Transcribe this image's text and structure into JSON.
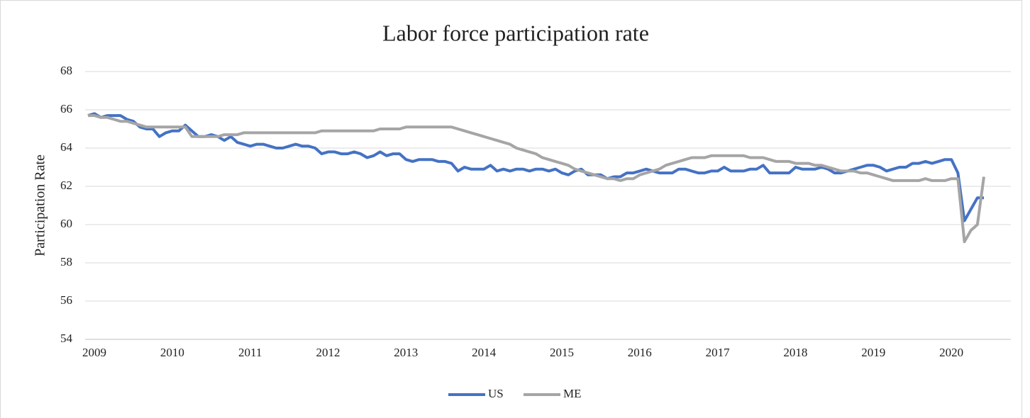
{
  "chart_data": {
    "type": "line",
    "title": "Labor force participation rate",
    "y_label": "Participation Rate",
    "categories": [
      "2009",
      null,
      null,
      null,
      null,
      null,
      null,
      null,
      null,
      null,
      null,
      null,
      "2010",
      null,
      null,
      null,
      null,
      null,
      null,
      null,
      null,
      null,
      null,
      null,
      "2011",
      null,
      null,
      null,
      null,
      null,
      null,
      null,
      null,
      null,
      null,
      null,
      "2012",
      null,
      null,
      null,
      null,
      null,
      null,
      null,
      null,
      null,
      null,
      null,
      "2013",
      null,
      null,
      null,
      null,
      null,
      null,
      null,
      null,
      null,
      null,
      null,
      "2014",
      null,
      null,
      null,
      null,
      null,
      null,
      null,
      null,
      null,
      null,
      null,
      "2015",
      null,
      null,
      null,
      null,
      null,
      null,
      null,
      null,
      null,
      null,
      null,
      "2016",
      null,
      null,
      null,
      null,
      null,
      null,
      null,
      null,
      null,
      null,
      null,
      "2017",
      null,
      null,
      null,
      null,
      null,
      null,
      null,
      null,
      null,
      null,
      null,
      "2018",
      null,
      null,
      null,
      null,
      null,
      null,
      null,
      null,
      null,
      null,
      null,
      "2019",
      null,
      null,
      null,
      null,
      null,
      null,
      null,
      null,
      null,
      null,
      null,
      "2020",
      null,
      null,
      null,
      null,
      null,
      null
    ],
    "series": [
      {
        "name": "US",
        "color": "#4472c4",
        "values": [
          65.7,
          65.8,
          65.6,
          65.7,
          65.7,
          65.7,
          65.5,
          65.4,
          65.1,
          65.0,
          65.0,
          64.6,
          64.8,
          64.9,
          64.9,
          65.2,
          64.9,
          64.6,
          64.6,
          64.7,
          64.6,
          64.4,
          64.6,
          64.3,
          64.2,
          64.1,
          64.2,
          64.2,
          64.1,
          64.0,
          64.0,
          64.1,
          64.2,
          64.1,
          64.1,
          64.0,
          63.7,
          63.8,
          63.8,
          63.7,
          63.7,
          63.8,
          63.7,
          63.5,
          63.6,
          63.8,
          63.6,
          63.7,
          63.7,
          63.4,
          63.3,
          63.4,
          63.4,
          63.4,
          63.3,
          63.3,
          63.2,
          62.8,
          63.0,
          62.9,
          62.9,
          62.9,
          63.1,
          62.8,
          62.9,
          62.8,
          62.9,
          62.9,
          62.8,
          62.9,
          62.9,
          62.8,
          62.9,
          62.7,
          62.6,
          62.8,
          62.9,
          62.6,
          62.6,
          62.6,
          62.4,
          62.5,
          62.5,
          62.7,
          62.7,
          62.8,
          62.9,
          62.8,
          62.7,
          62.7,
          62.7,
          62.9,
          62.9,
          62.8,
          62.7,
          62.7,
          62.8,
          62.8,
          63.0,
          62.8,
          62.8,
          62.8,
          62.9,
          62.9,
          63.1,
          62.7,
          62.7,
          62.7,
          62.7,
          63.0,
          62.9,
          62.9,
          62.9,
          63.0,
          62.9,
          62.7,
          62.7,
          62.8,
          62.9,
          63.0,
          63.1,
          63.1,
          63.0,
          62.8,
          62.9,
          63.0,
          63.0,
          63.2,
          63.2,
          63.3,
          63.2,
          63.3,
          63.4,
          63.4,
          62.7,
          60.2,
          60.8,
          61.4,
          61.4
        ]
      },
      {
        "name": "ME",
        "color": "#a5a5a5",
        "values": [
          65.7,
          65.7,
          65.6,
          65.6,
          65.5,
          65.4,
          65.4,
          65.3,
          65.2,
          65.1,
          65.1,
          65.1,
          65.1,
          65.1,
          65.1,
          65.1,
          64.6,
          64.6,
          64.6,
          64.6,
          64.6,
          64.7,
          64.7,
          64.7,
          64.8,
          64.8,
          64.8,
          64.8,
          64.8,
          64.8,
          64.8,
          64.8,
          64.8,
          64.8,
          64.8,
          64.8,
          64.9,
          64.9,
          64.9,
          64.9,
          64.9,
          64.9,
          64.9,
          64.9,
          64.9,
          65.0,
          65.0,
          65.0,
          65.0,
          65.1,
          65.1,
          65.1,
          65.1,
          65.1,
          65.1,
          65.1,
          65.1,
          65.0,
          64.9,
          64.8,
          64.7,
          64.6,
          64.5,
          64.4,
          64.3,
          64.2,
          64.0,
          63.9,
          63.8,
          63.7,
          63.5,
          63.4,
          63.3,
          63.2,
          63.1,
          62.9,
          62.8,
          62.7,
          62.6,
          62.5,
          62.4,
          62.4,
          62.3,
          62.4,
          62.4,
          62.6,
          62.7,
          62.8,
          62.9,
          63.1,
          63.2,
          63.3,
          63.4,
          63.5,
          63.5,
          63.5,
          63.6,
          63.6,
          63.6,
          63.6,
          63.6,
          63.6,
          63.5,
          63.5,
          63.5,
          63.4,
          63.3,
          63.3,
          63.3,
          63.2,
          63.2,
          63.2,
          63.1,
          63.1,
          63.0,
          62.9,
          62.8,
          62.8,
          62.8,
          62.7,
          62.7,
          62.6,
          62.5,
          62.4,
          62.3,
          62.3,
          62.3,
          62.3,
          62.3,
          62.4,
          62.3,
          62.3,
          62.3,
          62.4,
          62.4,
          59.1,
          59.7,
          60.0,
          62.5
        ]
      }
    ],
    "ylim": [
      54,
      68
    ],
    "yticks": [
      54,
      56,
      58,
      60,
      62,
      64,
      66,
      68
    ],
    "grid": true,
    "legend": "bottom"
  }
}
